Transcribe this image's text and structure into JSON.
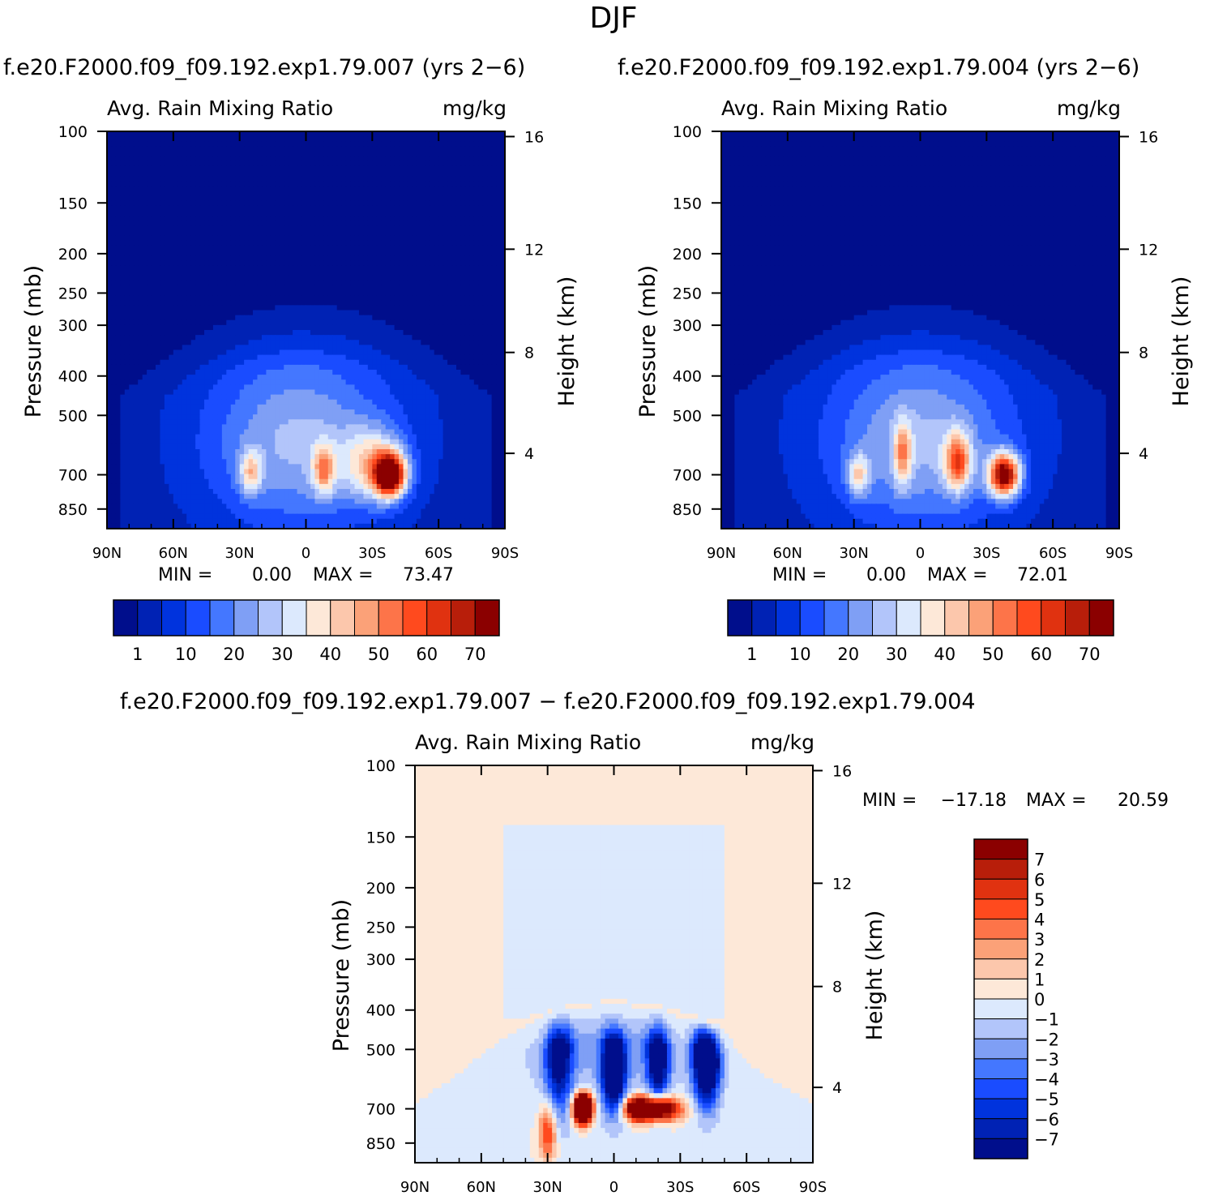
{
  "figure": {
    "season": "DJF",
    "left_title": "f.e20.F2000.f09_f09.192.exp1.79.007 (yrs 2−6)",
    "right_title": "f.e20.F2000.f09_f09.192.exp1.79.004 (yrs 2−6)",
    "diff_title": "f.e20.F2000.f09_f09.192.exp1.79.007 − f.e20.F2000.f09_f09.192.exp1.79.004"
  },
  "chart_data": [
    {
      "type": "heatmap",
      "variable": "Avg. Rain Mixing Ratio",
      "units": "mg/kg",
      "xlabel": "",
      "ylabel": "Pressure (mb)",
      "y2label": "Height (km)",
      "x_ticks": [
        "90N",
        "60N",
        "30N",
        "0",
        "30S",
        "60S",
        "90S"
      ],
      "x_values": [
        90,
        60,
        30,
        0,
        -30,
        -60,
        -90
      ],
      "y_ticks": [
        100,
        150,
        200,
        250,
        300,
        400,
        500,
        700,
        850
      ],
      "y2_ticks": [
        16,
        12,
        8,
        4
      ],
      "ylim": [
        100,
        1000
      ],
      "y_scale": "log",
      "min_label": "MIN =",
      "min_value": "0.00",
      "max_label": "MAX =",
      "max_value": "73.47",
      "colorbar_levels": [
        1,
        5,
        10,
        15,
        20,
        25,
        30,
        35,
        40,
        45,
        50,
        55,
        60,
        65,
        70
      ],
      "colorbar_labels": [
        "1",
        "10",
        "20",
        "30",
        "40",
        "50",
        "60",
        "70"
      ],
      "colors": [
        "#000e8c",
        "#0022b4",
        "#0033dd",
        "#1a4cff",
        "#4477ff",
        "#7f9ff5",
        "#b2c5fa",
        "#dce9fd",
        "#fde8d8",
        "#fcc7ac",
        "#fba178",
        "#fd7449",
        "#ff4a1e",
        "#e03210",
        "#b81e0a",
        "#8b0000"
      ],
      "peaks": [
        {
          "lat": -38,
          "p": 700,
          "value": 73.47
        },
        {
          "lat": -8,
          "p": 680,
          "value": 45
        },
        {
          "lat": 25,
          "p": 690,
          "value": 40
        }
      ]
    },
    {
      "type": "heatmap",
      "variable": "Avg. Rain Mixing Ratio",
      "units": "mg/kg",
      "xlabel": "",
      "ylabel": "Pressure (mb)",
      "y2label": "Height (km)",
      "x_ticks": [
        "90N",
        "60N",
        "30N",
        "0",
        "30S",
        "60S",
        "90S"
      ],
      "x_values": [
        90,
        60,
        30,
        0,
        -30,
        -60,
        -90
      ],
      "y_ticks": [
        100,
        150,
        200,
        250,
        300,
        400,
        500,
        700,
        850
      ],
      "y2_ticks": [
        16,
        12,
        8,
        4
      ],
      "ylim": [
        100,
        1000
      ],
      "y_scale": "log",
      "min_label": "MIN =",
      "min_value": "0.00",
      "max_label": "MAX =",
      "max_value": "72.01",
      "colorbar_levels": [
        1,
        5,
        10,
        15,
        20,
        25,
        30,
        35,
        40,
        45,
        50,
        55,
        60,
        65,
        70
      ],
      "colorbar_labels": [
        "1",
        "10",
        "20",
        "30",
        "40",
        "50",
        "60",
        "70"
      ],
      "colors": [
        "#000e8c",
        "#0022b4",
        "#0033dd",
        "#1a4cff",
        "#4477ff",
        "#7f9ff5",
        "#b2c5fa",
        "#dce9fd",
        "#fde8d8",
        "#fcc7ac",
        "#fba178",
        "#fd7449",
        "#ff4a1e",
        "#e03210",
        "#b81e0a",
        "#8b0000"
      ],
      "peaks": [
        {
          "lat": -38,
          "p": 700,
          "value": 72.01
        },
        {
          "lat": -17,
          "p": 650,
          "value": 50
        },
        {
          "lat": 28,
          "p": 700,
          "value": 38
        }
      ]
    },
    {
      "type": "heatmap",
      "variable": "Avg. Rain Mixing Ratio",
      "units": "mg/kg",
      "xlabel": "",
      "ylabel": "Pressure (mb)",
      "y2label": "Height (km)",
      "x_ticks": [
        "90N",
        "60N",
        "30N",
        "0",
        "30S",
        "60S",
        "90S"
      ],
      "x_values": [
        90,
        60,
        30,
        0,
        -30,
        -60,
        -90
      ],
      "y_ticks": [
        100,
        150,
        200,
        250,
        300,
        400,
        500,
        700,
        850
      ],
      "y2_ticks": [
        16,
        12,
        8,
        4
      ],
      "ylim": [
        100,
        1000
      ],
      "y_scale": "log",
      "min_label": "MIN =",
      "min_value": "−17.18",
      "max_label": "MAX =",
      "max_value": "20.59",
      "colorbar_levels": [
        -7,
        -6,
        -5,
        -4,
        -3,
        -2,
        -1,
        0,
        1,
        2,
        3,
        4,
        5,
        6,
        7
      ],
      "colorbar_labels": [
        "7",
        "6",
        "5",
        "4",
        "3",
        "2",
        "1",
        "0",
        "−1",
        "−2",
        "−3",
        "−4",
        "−5",
        "−6",
        "−7"
      ],
      "colors": [
        "#000e8c",
        "#0022b4",
        "#0033dd",
        "#1a4cff",
        "#4477ff",
        "#7f9ff5",
        "#b2c5fa",
        "#dce9fd",
        "#fde8d8",
        "#fcc7ac",
        "#fba178",
        "#fd7449",
        "#ff4a1e",
        "#e03210",
        "#b81e0a",
        "#8b0000"
      ],
      "peaks": [
        {
          "lat": 14,
          "p": 700,
          "value": 20.59
        },
        {
          "lat": -20,
          "p": 700,
          "value": 9
        },
        {
          "lat": 0,
          "p": 550,
          "value": -10
        },
        {
          "lat": -40,
          "p": 450,
          "value": -17.18
        }
      ]
    }
  ]
}
